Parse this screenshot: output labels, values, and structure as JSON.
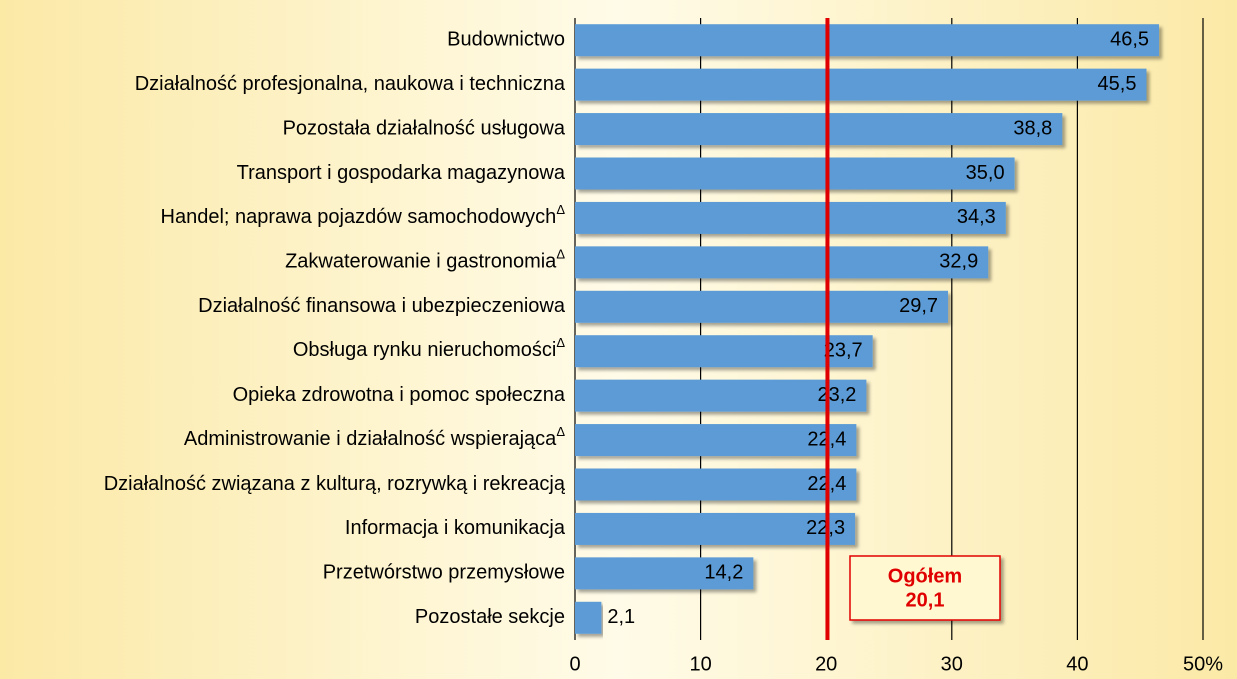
{
  "chart_data": {
    "type": "bar",
    "orientation": "horizontal",
    "categories": [
      "Budownictwo",
      "Działalność profesjonalna, naukowa i techniczna",
      "Pozostała działalność usługowa",
      "Transport i gospodarka magazynowa",
      "Handel; naprawa pojazdów samochodowychΔ",
      "Zakwaterowanie i gastronomiaΔ",
      "Działalność finansowa i ubezpieczeniowa",
      "Obsługa rynku nieruchomościΔ",
      "Opieka zdrowotna i pomoc społeczna",
      "Administrowanie i działalność wspierającaΔ",
      "Działalność związana z kulturą, rozrywką i rekreacją",
      "Informacja i komunikacja",
      "Przetwórstwo przemysłowe",
      "Pozostałe sekcje"
    ],
    "values": [
      46.5,
      45.5,
      38.8,
      35.0,
      34.3,
      32.9,
      29.7,
      23.7,
      23.2,
      22.4,
      22.4,
      22.3,
      14.2,
      2.1
    ],
    "value_labels": [
      "46,5",
      "45,5",
      "38,8",
      "35,0",
      "34,3",
      "32,9",
      "29,7",
      "23,7",
      "23,2",
      "22,4",
      "22,4",
      "22,3",
      "14,2",
      "2,1"
    ],
    "color": "#5b9bd5",
    "xlim": [
      0,
      50
    ],
    "xticks": [
      0,
      10,
      20,
      30,
      40,
      {
        "value": 50,
        "label": "50%"
      }
    ],
    "grid": true,
    "reference_line": {
      "label": "Ogółem",
      "value": 20.1,
      "value_label": "20,1",
      "color": "#e00000"
    }
  }
}
